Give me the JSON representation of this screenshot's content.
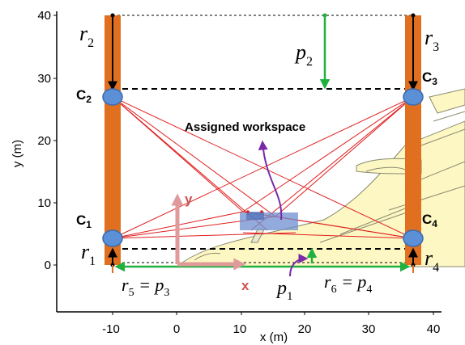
{
  "axes": {
    "xlabel": "x (m)",
    "ylabel": "y (m)",
    "xticks": [
      "-10",
      "0",
      "10",
      "20",
      "30",
      "40"
    ],
    "yticks": [
      "0",
      "10",
      "20",
      "30",
      "40"
    ]
  },
  "labels": {
    "r2": "r",
    "r2_sub": "2",
    "r3": "r",
    "r3_sub": "3",
    "r1": "r",
    "r1_sub": "1",
    "r4": "r",
    "r4_sub": "4",
    "p2": "p",
    "p2_sub": "2",
    "p1": "p",
    "p1_sub": "1",
    "r5_eq": "r",
    "r5_sub": "5",
    "r5_rest": " = p",
    "r5_p_sub": "3",
    "r6_eq": "r",
    "r6_sub": "6",
    "r6_rest": " = p",
    "r6_p_sub": "4",
    "c1": "C",
    "c1_sub": "1",
    "c2": "C",
    "c2_sub": "2",
    "c3": "C",
    "c3_sub": "3",
    "c4": "C",
    "c4_sub": "4",
    "workspace": "Assigned workspace",
    "frame_x": "x",
    "frame_y": "y"
  },
  "colors": {
    "pillar": "#e07020",
    "cable": "#e02020",
    "camera": "#5b8fd6",
    "arrow_green": "#20b040",
    "arrow_purple": "#7a2aa8",
    "workspace": "#6f8fd0",
    "frame": "#e09a9a",
    "aircraft_fill": "#fdf7c3"
  }
}
